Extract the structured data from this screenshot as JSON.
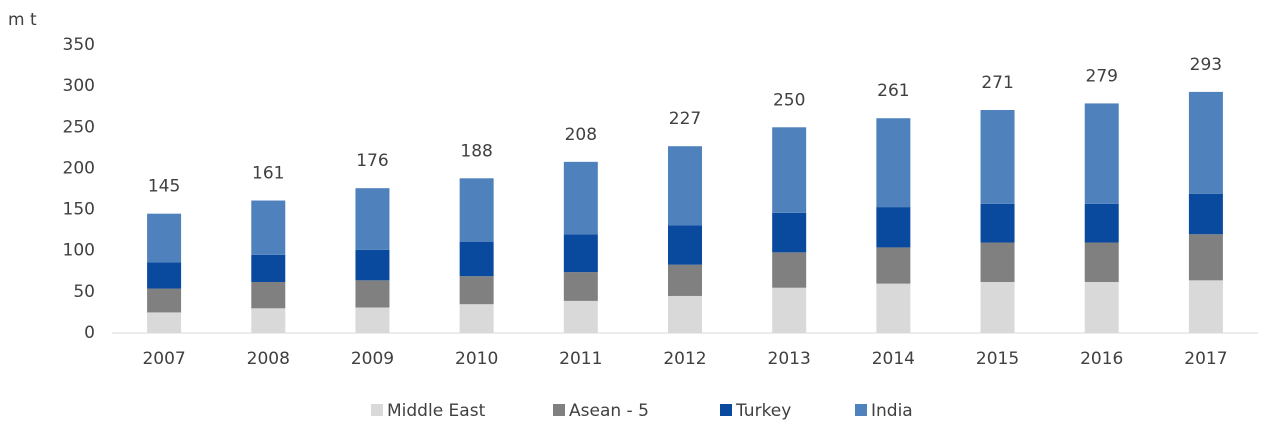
{
  "chart_data": {
    "type": "stacked_bar",
    "ylabel": "m t",
    "categories": [
      "2007",
      "2008",
      "2009",
      "2010",
      "2011",
      "2012",
      "2013",
      "2014",
      "2015",
      "2016",
      "2017"
    ],
    "series": [
      {
        "name": "Middle East",
        "color": "#d9d9d9",
        "values": [
          25,
          30,
          31,
          35,
          39,
          45,
          55,
          60,
          62,
          62,
          64
        ]
      },
      {
        "name": "Asean - 5",
        "color": "#808080",
        "values": [
          29,
          32,
          33,
          34,
          35,
          38,
          43,
          44,
          48,
          48,
          56
        ]
      },
      {
        "name": "Turkey",
        "color": "#0a4a9e",
        "values": [
          32,
          33,
          37,
          42,
          46,
          48,
          48,
          49,
          47,
          47,
          49
        ]
      },
      {
        "name": "India",
        "color": "#4f81bd",
        "values": [
          59,
          66,
          75,
          77,
          88,
          96,
          104,
          108,
          114,
          122,
          124
        ]
      }
    ],
    "totals": [
      145,
      161,
      176,
      188,
      208,
      227,
      250,
      261,
      271,
      279,
      293
    ],
    "ylim": [
      0,
      350
    ],
    "yticks": [
      0,
      50,
      100,
      150,
      200,
      250,
      300,
      350
    ],
    "grid": false
  }
}
